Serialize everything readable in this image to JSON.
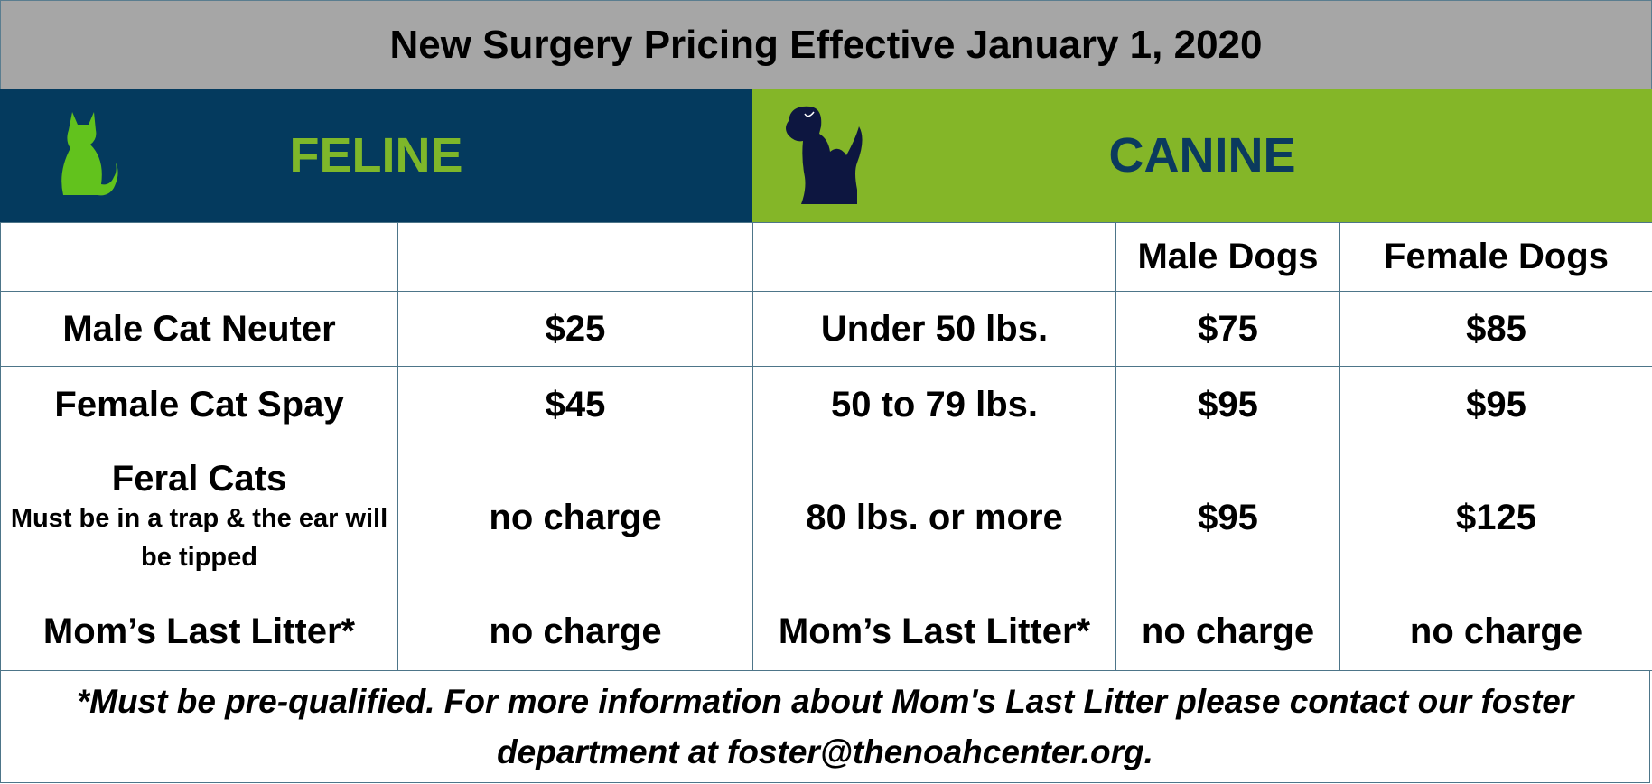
{
  "title": "New Surgery Pricing Effective January 1, 2020",
  "sections": {
    "feline": "FELINE",
    "canine": "CANINE"
  },
  "table": {
    "canine_columns": [
      "Male Dogs",
      "Female Dogs"
    ],
    "rows": [
      {
        "feline": {
          "label": "Male Cat Neuter",
          "price": "$25"
        },
        "canine": {
          "size": "Under 50 lbs.",
          "male": "$75",
          "female": "$85"
        }
      },
      {
        "feline": {
          "label": "Female Cat Spay",
          "price": "$45"
        },
        "canine": {
          "size": "50 to 79 lbs.",
          "male": "$95",
          "female": "$95"
        }
      },
      {
        "feline": {
          "label": "Feral Cats",
          "note": "Must be in a trap & the ear will be tipped",
          "price": "no charge"
        },
        "canine": {
          "size": "80 lbs. or more",
          "male": "$95",
          "female": "$125"
        }
      },
      {
        "feline": {
          "label": "Mom’s Last Litter*",
          "price": "no charge"
        },
        "canine": {
          "size": "Mom’s Last Litter*",
          "male": "no charge",
          "female": "no charge"
        }
      }
    ]
  },
  "footer": "*Must be pre-qualified. For more information about Mom's Last Litter please contact our foster department at foster@thenoahcenter.org."
}
